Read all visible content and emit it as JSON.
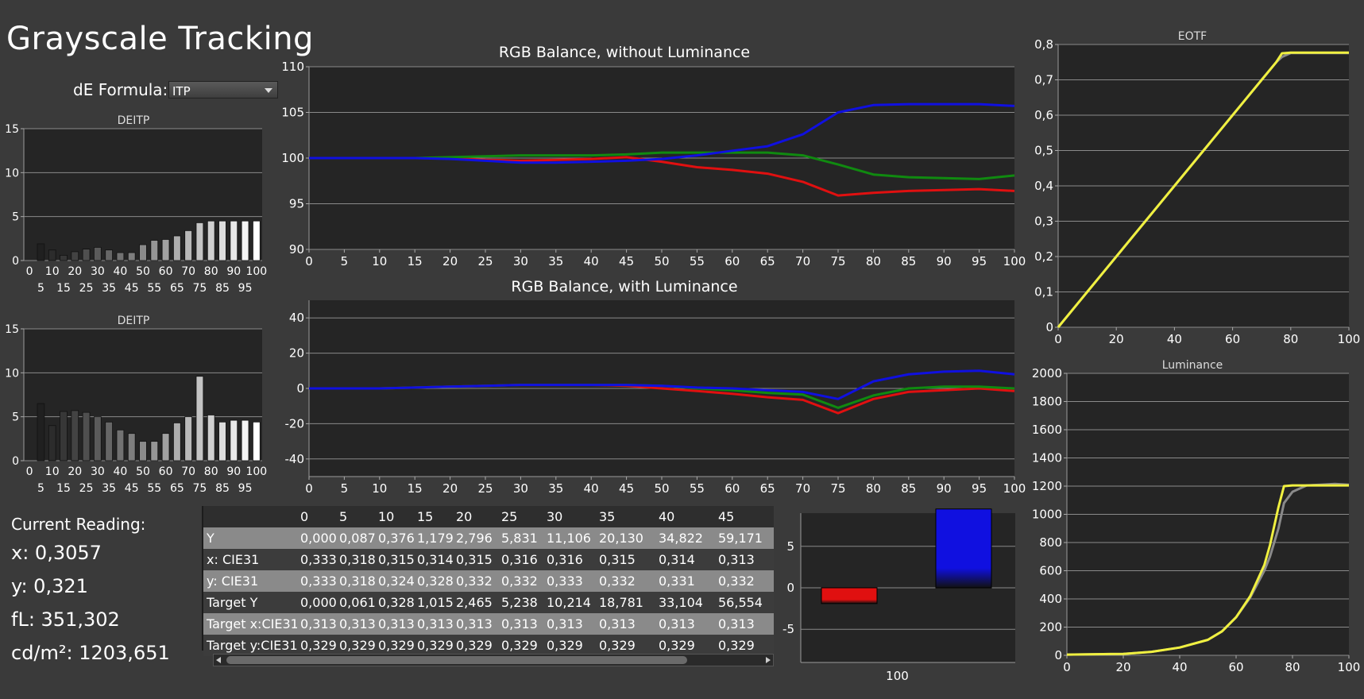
{
  "title": "Grayscale Tracking",
  "de_formula": {
    "label": "dE Formula:",
    "value": "ITP"
  },
  "current_reading": {
    "title": "Current Reading:",
    "x": "x: 0,3057",
    "y": "y: 0,321",
    "fl": "fL: 351,302",
    "cdm2": "cd/m²: 1203,651"
  },
  "table": {
    "headers": [
      "",
      "0",
      "5",
      "10",
      "15",
      "20",
      "25",
      "30",
      "35",
      "40",
      "45"
    ],
    "rows": [
      [
        "Y",
        "0,000",
        "0,087",
        "0,376",
        "1,179",
        "2,796",
        "5,831",
        "11,106",
        "20,130",
        "34,822",
        "59,171"
      ],
      [
        "x: CIE31",
        "0,333",
        "0,318",
        "0,315",
        "0,314",
        "0,315",
        "0,316",
        "0,316",
        "0,315",
        "0,314",
        "0,313"
      ],
      [
        "y: CIE31",
        "0,333",
        "0,318",
        "0,324",
        "0,328",
        "0,332",
        "0,332",
        "0,333",
        "0,332",
        "0,331",
        "0,332"
      ],
      [
        "Target Y",
        "0,000",
        "0,061",
        "0,328",
        "1,015",
        "2,465",
        "5,238",
        "10,214",
        "18,781",
        "33,104",
        "56,554"
      ],
      [
        "Target x:CIE31",
        "0,313",
        "0,313",
        "0,313",
        "0,313",
        "0,313",
        "0,313",
        "0,313",
        "0,313",
        "0,313",
        "0,313"
      ],
      [
        "Target y:CIE31",
        "0,329",
        "0,329",
        "0,329",
        "0,329",
        "0,329",
        "0,329",
        "0,329",
        "0,329",
        "0,329",
        "0,329"
      ]
    ]
  },
  "colors": {
    "red": "#e01010",
    "green": "#108a10",
    "blue": "#1010e0",
    "yellow": "#f0f040",
    "gray": "#8a8a8a"
  },
  "chart_data": [
    {
      "id": "deitp1",
      "type": "bar",
      "title": "DEITP",
      "categories": [
        0,
        5,
        10,
        15,
        20,
        25,
        30,
        35,
        40,
        45,
        50,
        55,
        60,
        65,
        70,
        75,
        80,
        85,
        90,
        95,
        100
      ],
      "values": [
        0,
        1.9,
        1.2,
        0.6,
        1.0,
        1.3,
        1.5,
        1.2,
        0.9,
        0.9,
        1.8,
        2.3,
        2.4,
        2.8,
        3.4,
        4.3,
        4.5,
        4.5,
        4.5,
        4.5,
        4.5
      ],
      "ylim": [
        0,
        15
      ],
      "yticks": [
        0,
        5,
        10,
        15
      ],
      "xticks_top": [
        0,
        10,
        20,
        30,
        40,
        50,
        60,
        70,
        80,
        90,
        100
      ],
      "xticks_bottom": [
        5,
        15,
        25,
        35,
        45,
        55,
        65,
        75,
        85,
        95
      ]
    },
    {
      "id": "deitp2",
      "type": "bar",
      "title": "DEITP",
      "categories": [
        0,
        5,
        10,
        15,
        20,
        25,
        30,
        35,
        40,
        45,
        50,
        55,
        60,
        65,
        70,
        75,
        80,
        85,
        90,
        95,
        100
      ],
      "values": [
        0,
        6.5,
        4.0,
        5.6,
        5.7,
        5.5,
        5.0,
        4.4,
        3.5,
        3.1,
        2.2,
        2.2,
        3.1,
        4.3,
        5.0,
        9.6,
        5.2,
        4.4,
        4.6,
        4.6,
        4.4
      ],
      "ylim": [
        0,
        15
      ],
      "yticks": [
        0,
        5,
        10,
        15
      ],
      "xticks_top": [
        0,
        10,
        20,
        30,
        40,
        50,
        60,
        70,
        80,
        90,
        100
      ],
      "xticks_bottom": [
        5,
        15,
        25,
        35,
        45,
        55,
        65,
        75,
        85,
        95
      ]
    },
    {
      "id": "rgb1",
      "type": "line",
      "title": "RGB Balance, without Luminance",
      "x": [
        0,
        5,
        10,
        15,
        20,
        25,
        30,
        35,
        40,
        45,
        50,
        55,
        60,
        65,
        70,
        75,
        80,
        85,
        90,
        95,
        100
      ],
      "ylim": [
        90,
        110
      ],
      "yticks": [
        90,
        95,
        100,
        105,
        110
      ],
      "xticks": [
        0,
        5,
        10,
        15,
        20,
        25,
        30,
        35,
        40,
        45,
        50,
        55,
        60,
        65,
        70,
        75,
        80,
        85,
        90,
        95,
        100
      ],
      "series": [
        {
          "color": "#e01010",
          "values": [
            100,
            100,
            100,
            100,
            100,
            99.8,
            99.7,
            99.8,
            99.9,
            100.1,
            99.6,
            99.0,
            98.7,
            98.3,
            97.4,
            95.9,
            96.2,
            96.4,
            96.5,
            96.6,
            96.4
          ]
        },
        {
          "color": "#108a10",
          "values": [
            100,
            100,
            100,
            100,
            100.1,
            100.2,
            100.3,
            100.3,
            100.3,
            100.4,
            100.6,
            100.6,
            100.6,
            100.6,
            100.3,
            99.3,
            98.2,
            97.9,
            97.8,
            97.7,
            98.1
          ]
        },
        {
          "color": "#1010e0",
          "values": [
            100,
            100,
            100,
            100,
            99.9,
            99.7,
            99.5,
            99.5,
            99.6,
            99.7,
            99.9,
            100.3,
            100.8,
            101.3,
            102.6,
            105.0,
            105.8,
            105.9,
            105.9,
            105.9,
            105.7
          ]
        }
      ]
    },
    {
      "id": "rgb2",
      "type": "line",
      "title": "RGB Balance, with Luminance",
      "x": [
        0,
        5,
        10,
        15,
        20,
        25,
        30,
        35,
        40,
        45,
        50,
        55,
        60,
        65,
        70,
        75,
        80,
        85,
        90,
        95,
        100
      ],
      "ylim": [
        -50,
        50
      ],
      "yticks": [
        -40,
        -20,
        0,
        20,
        40
      ],
      "xticks": [
        0,
        5,
        10,
        15,
        20,
        25,
        30,
        35,
        40,
        45,
        50,
        55,
        60,
        65,
        70,
        75,
        80,
        85,
        90,
        95,
        100
      ],
      "series": [
        {
          "color": "#e01010",
          "values": [
            0,
            0,
            0,
            0.5,
            1,
            1.5,
            2,
            2,
            2,
            1.5,
            0,
            -1.5,
            -3,
            -5,
            -6.5,
            -14,
            -6,
            -2,
            -1,
            0,
            -1.5
          ]
        },
        {
          "color": "#108a10",
          "values": [
            0,
            0,
            0,
            0.5,
            1,
            1.5,
            2,
            2,
            2,
            2,
            1.5,
            0,
            -1,
            -2.5,
            -3.5,
            -11,
            -4,
            0,
            1,
            1,
            0
          ]
        },
        {
          "color": "#1010e0",
          "values": [
            0,
            0,
            0,
            0.5,
            1,
            1.5,
            2,
            2,
            2,
            2,
            1.5,
            0.5,
            0,
            -1,
            -2,
            -6,
            4,
            8,
            9.5,
            10,
            8
          ]
        }
      ]
    },
    {
      "id": "eotf",
      "type": "line",
      "title": "EOTF",
      "x": [
        0,
        10,
        20,
        30,
        40,
        50,
        60,
        70,
        75,
        77,
        80,
        90,
        100
      ],
      "xlim": [
        0,
        100
      ],
      "ylim": [
        0,
        0.8
      ],
      "xticks": [
        0,
        20,
        40,
        60,
        80,
        100
      ],
      "yticks": [
        0,
        0.1,
        0.2,
        0.3,
        0.4,
        0.5,
        0.6,
        0.7,
        0.8
      ],
      "ytick_labels": [
        "0",
        "0,1",
        "0,2",
        "0,3",
        "0,4",
        "0,5",
        "0,6",
        "0,7",
        "0,8"
      ],
      "series": [
        {
          "color": "#8a8a8a",
          "values": [
            0,
            0.1,
            0.2,
            0.3,
            0.4,
            0.5,
            0.6,
            0.7,
            0.75,
            0.765,
            0.776,
            0.776,
            0.776
          ]
        },
        {
          "color": "#f0f040",
          "values": [
            0,
            0.1,
            0.2,
            0.3,
            0.4,
            0.5,
            0.6,
            0.7,
            0.75,
            0.775,
            0.777,
            0.777,
            0.777
          ]
        }
      ]
    },
    {
      "id": "lum",
      "type": "line",
      "title": "Luminance",
      "x": [
        0,
        20,
        30,
        40,
        50,
        55,
        60,
        65,
        70,
        72,
        75,
        77,
        80,
        85,
        90,
        95,
        100
      ],
      "xlim": [
        0,
        100
      ],
      "ylim": [
        0,
        2000
      ],
      "xticks": [
        0,
        20,
        40,
        60,
        80,
        100
      ],
      "yticks": [
        0,
        200,
        400,
        600,
        800,
        1000,
        1200,
        1400,
        1600,
        1800,
        2000
      ],
      "series": [
        {
          "color": "#8a8a8a",
          "values": [
            5,
            10,
            25,
            55,
            110,
            170,
            270,
            410,
            600,
            700,
            900,
            1080,
            1160,
            1205,
            1210,
            1215,
            1210
          ]
        },
        {
          "color": "#f0f040",
          "values": [
            5,
            10,
            25,
            55,
            110,
            170,
            270,
            420,
            640,
            780,
            1050,
            1200,
            1205,
            1205,
            1205,
            1205,
            1205
          ]
        }
      ]
    },
    {
      "id": "rgbbars",
      "type": "bar",
      "title": "",
      "categories": [
        "100"
      ],
      "series": [
        {
          "color": "#e01010",
          "values": [
            -1.9
          ]
        },
        {
          "color": "#108a10",
          "values": [
            0
          ]
        },
        {
          "color": "#1010e0",
          "values": [
            9.5
          ]
        }
      ],
      "ylim": [
        -9,
        9
      ],
      "yticks": [
        -5,
        0,
        5
      ]
    }
  ]
}
